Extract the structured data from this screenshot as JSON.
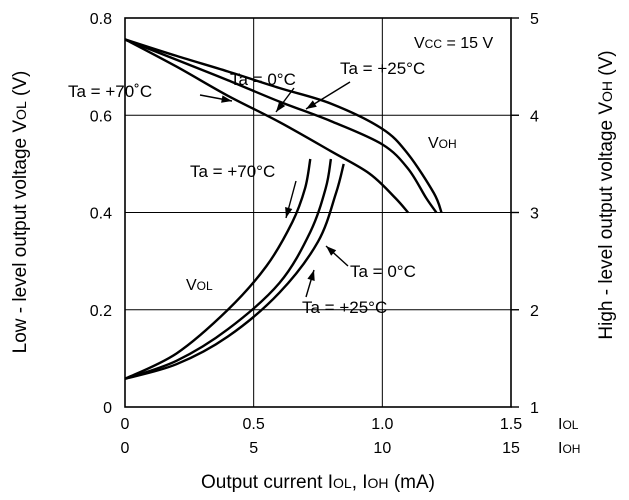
{
  "chart_data": {
    "type": "line",
    "title": "",
    "xlabel": "Output current Iₒʟ, Iₒʜ (mA)",
    "xlabel_parts": {
      "main": "Output current I",
      "sub1": "OL",
      "mid": ", I",
      "sub2": "OH",
      "unit": " (mA)"
    },
    "ylabel_left": {
      "main": "Low - level output voltage V",
      "sub": "OL",
      "unit": " (V)"
    },
    "ylabel_right": {
      "main": "High - level output voltage V",
      "sub": "OH",
      "unit": " (V)"
    },
    "x_iol": {
      "ticks": [
        "0",
        "0.5",
        "1.0",
        "1.5"
      ],
      "name": "I",
      "sub": "OL",
      "range": [
        0,
        1.5
      ]
    },
    "x_ioh": {
      "ticks": [
        "0",
        "5",
        "10",
        "15"
      ],
      "name": "I",
      "sub": "OH",
      "range": [
        0,
        15
      ]
    },
    "y_left": {
      "ticks": [
        "0",
        "0.2",
        "0.4",
        "0.6",
        "0.8"
      ],
      "range": [
        0,
        0.8
      ]
    },
    "y_right": {
      "ticks": [
        "1",
        "2",
        "3",
        "4",
        "5"
      ],
      "range": [
        1,
        5
      ]
    },
    "grid": true,
    "condition": {
      "main": "V",
      "sub": "CC",
      "rest": " = 15 V"
    },
    "voh_label": {
      "main": "V",
      "sub": "OH"
    },
    "vol_label": {
      "main": "V",
      "sub": "OL"
    },
    "series": [
      {
        "name": "Ta = 0°C",
        "group": "VOH",
        "x_mA": [
          0,
          2,
          4,
          6,
          8,
          10,
          11,
          12,
          12.3
        ],
        "y_V": [
          4.78,
          4.61,
          4.45,
          4.28,
          4.12,
          3.86,
          3.6,
          3.2,
          3.0
        ]
      },
      {
        "name": "Ta = +25°C",
        "group": "VOH",
        "x_mA": [
          0,
          2,
          4,
          6,
          8,
          10,
          11,
          11.7,
          12.1
        ],
        "y_V": [
          4.78,
          4.57,
          4.36,
          4.14,
          3.94,
          3.7,
          3.45,
          3.15,
          3.0
        ]
      },
      {
        "name": "Ta = +70°C",
        "group": "VOH",
        "x_mA": [
          0,
          2,
          4,
          6,
          8,
          9.5,
          10.5,
          11.0
        ],
        "y_V": [
          4.78,
          4.5,
          4.2,
          3.93,
          3.63,
          3.4,
          3.15,
          3.0
        ]
      },
      {
        "name": "Ta = +70°C",
        "group": "VOL",
        "x_mA": [
          0,
          2,
          4,
          5.5,
          6.5,
          7.0,
          7.2
        ],
        "y_V": [
          0.058,
          0.11,
          0.2,
          0.29,
          0.38,
          0.45,
          0.51
        ]
      },
      {
        "name": "Ta = 0°C",
        "group": "VOL",
        "x_mA": [
          0,
          2,
          4,
          6,
          7.2,
          7.8,
          8.0
        ],
        "y_V": [
          0.058,
          0.095,
          0.16,
          0.255,
          0.36,
          0.45,
          0.51
        ]
      },
      {
        "name": "Ta = +25°C",
        "group": "VOL",
        "x_mA": [
          0,
          2,
          4,
          6,
          7.5,
          8.2,
          8.5
        ],
        "y_V": [
          0.058,
          0.088,
          0.145,
          0.235,
          0.34,
          0.44,
          0.5
        ]
      }
    ],
    "annotations": [
      {
        "text": "Ta = 0°C",
        "target": "VOH 0°C"
      },
      {
        "text": "Ta = +25°C",
        "target": "VOH +25°C"
      },
      {
        "text": "Ta = +70˚C",
        "target": "VOH +70°C"
      },
      {
        "text": "Ta = +70°C",
        "target": "VOL +70°C"
      },
      {
        "text": "Ta = 0°C",
        "target": "VOL 0°C"
      },
      {
        "text": "Ta = +25°C",
        "target": "VOL +25°C"
      }
    ]
  }
}
